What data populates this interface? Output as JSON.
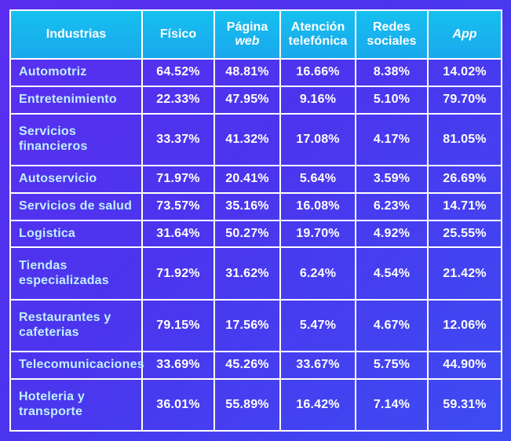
{
  "chart_data": {
    "type": "table",
    "columns": [
      "Industrias",
      "Físico",
      "Página web",
      "Atención telefónica",
      "Redes sociales",
      "App"
    ],
    "header": {
      "industrias": "Industrias",
      "fisico": "Físico",
      "pagina_line1": "Página",
      "pagina_line2": "web",
      "atencion": "Atención telefónica",
      "redes": "Redes sociales",
      "app": "App"
    },
    "rows": [
      {
        "industria": "Automotriz",
        "fisico": "64.52%",
        "web": "48.81%",
        "telefonica": "16.66%",
        "redes": "8.38%",
        "app": "14.02%"
      },
      {
        "industria": "Entretenimiento",
        "fisico": "22.33%",
        "web": "47.95%",
        "telefonica": "9.16%",
        "redes": "5.10%",
        "app": "79.70%"
      },
      {
        "industria": "Servicios financieros",
        "fisico": "33.37%",
        "web": "41.32%",
        "telefonica": "17.08%",
        "redes": "4.17%",
        "app": "81.05%"
      },
      {
        "industria": "Autoservicio",
        "fisico": "71.97%",
        "web": "20.41%",
        "telefonica": "5.64%",
        "redes": "3.59%",
        "app": "26.69%"
      },
      {
        "industria": "Servicios de salud",
        "fisico": "73.57%",
        "web": "35.16%",
        "telefonica": "16.08%",
        "redes": "6.23%",
        "app": "14.71%"
      },
      {
        "industria": "Logistica",
        "fisico": "31.64%",
        "web": "50.27%",
        "telefonica": "19.70%",
        "redes": "4.92%",
        "app": "25.55%"
      },
      {
        "industria": "Tiendas especializadas",
        "fisico": "71.92%",
        "web": "31.62%",
        "telefonica": "6.24%",
        "redes": "4.54%",
        "app": "21.42%"
      },
      {
        "industria": "Restaurantes y cafeterias",
        "fisico": "79.15%",
        "web": "17.56%",
        "telefonica": "5.47%",
        "redes": "4.67%",
        "app": "12.06%"
      },
      {
        "industria": "Telecomunicaciones",
        "fisico": "33.69%",
        "web": "45.26%",
        "telefonica": "33.67%",
        "redes": "5.75%",
        "app": "44.90%"
      },
      {
        "industria": "Hoteleria y transporte",
        "fisico": "36.01%",
        "web": "55.89%",
        "telefonica": "16.42%",
        "redes": "7.14%",
        "app": "59.31%"
      }
    ]
  },
  "colors": {
    "background_start": "#5b2ef0",
    "background_end": "#3d4cf2",
    "header_bg": "#16c0f0",
    "label_text": "#bff0ff",
    "value_text": "#ffffff",
    "grid": "#ffffff"
  }
}
